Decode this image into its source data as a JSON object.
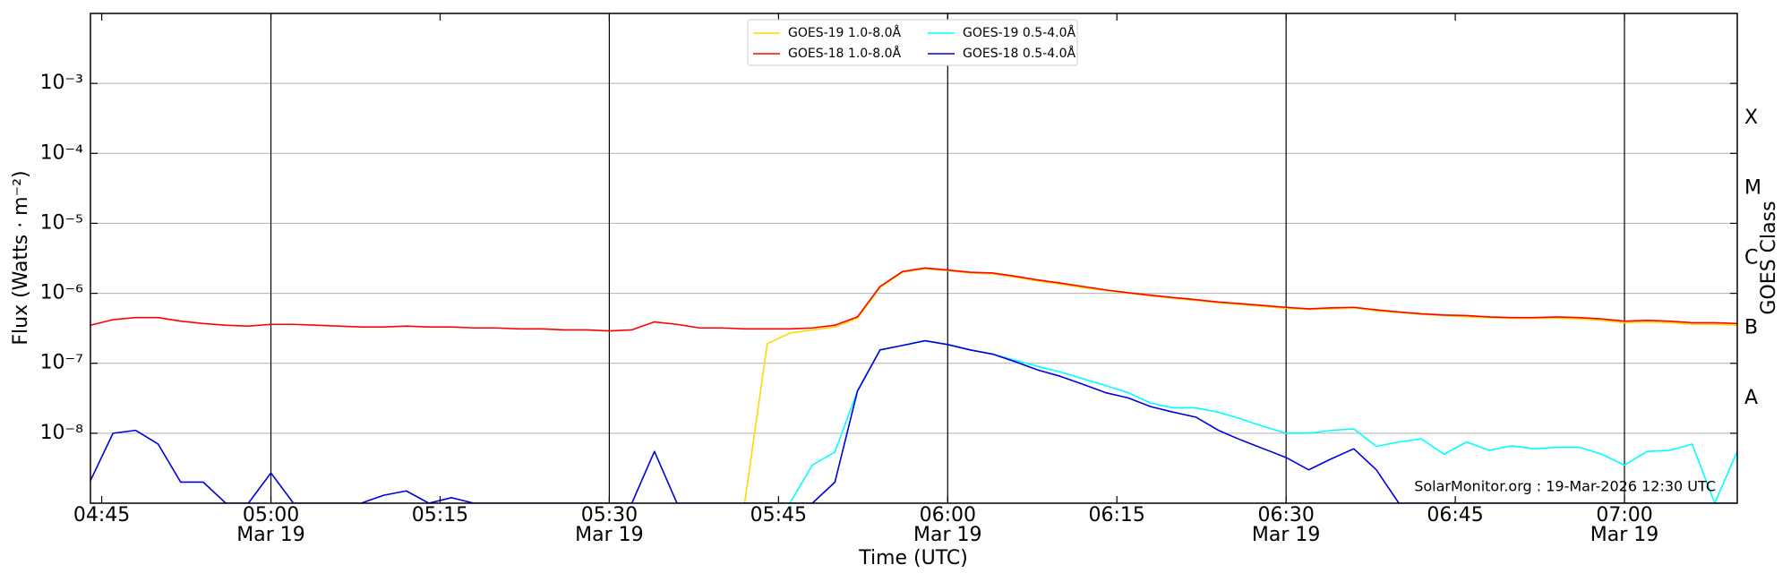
{
  "chart_data": {
    "type": "line",
    "xlabel": "Time (UTC)",
    "ylabel": "Flux (Watts · m⁻²)",
    "y2label": "GOES Class",
    "annotation": "SolarMonitor.org : 19-Mar-2026 12:30 UTC",
    "yscale": "log",
    "grid": true,
    "legend": "upper center",
    "xlim": [
      "04:44",
      "07:10"
    ],
    "xticks": [
      "04:45",
      {
        "value": "05:00",
        "label": [
          "05:00",
          "Mar 19"
        ]
      },
      "05:15",
      {
        "value": "05:30",
        "label": [
          "05:30",
          "Mar 19"
        ]
      },
      "05:45",
      {
        "value": "06:00",
        "label": [
          "06:00",
          "Mar 19"
        ]
      },
      "06:15",
      {
        "value": "06:30",
        "label": [
          "06:30",
          "Mar 19"
        ]
      },
      "06:45",
      {
        "value": "07:00",
        "label": [
          "07:00",
          "Mar 19"
        ]
      }
    ],
    "ylim": [
      1e-09,
      0.01
    ],
    "yticks": [
      {
        "value": 1e-08,
        "label": "10⁻⁸"
      },
      {
        "value": 1e-07,
        "label": "10⁻⁷"
      },
      {
        "value": 1e-06,
        "label": "10⁻⁶"
      },
      {
        "value": 1e-05,
        "label": "10⁻⁵"
      },
      {
        "value": 0.0001,
        "label": "10⁻⁴"
      },
      {
        "value": 0.001,
        "label": "10⁻³"
      }
    ],
    "y2ticks": [
      {
        "value": 3.16e-08,
        "label": "A"
      },
      {
        "value": 3.16e-07,
        "label": "B"
      },
      {
        "value": 3.16e-06,
        "label": "C"
      },
      {
        "value": 3.16e-05,
        "label": "M"
      },
      {
        "value": 0.000316,
        "label": "X"
      }
    ],
    "x": [
      "04:44",
      "04:46",
      "04:48",
      "04:50",
      "04:52",
      "04:54",
      "04:56",
      "04:58",
      "05:00",
      "05:02",
      "05:04",
      "05:06",
      "05:08",
      "05:10",
      "05:12",
      "05:14",
      "05:16",
      "05:18",
      "05:20",
      "05:22",
      "05:24",
      "05:26",
      "05:28",
      "05:30",
      "05:32",
      "05:34",
      "05:36",
      "05:38",
      "05:40",
      "05:42",
      "05:44",
      "05:46",
      "05:48",
      "05:50",
      "05:52",
      "05:54",
      "05:56",
      "05:58",
      "06:00",
      "06:02",
      "06:04",
      "06:06",
      "06:08",
      "06:10",
      "06:12",
      "06:14",
      "06:16",
      "06:18",
      "06:20",
      "06:22",
      "06:24",
      "06:26",
      "06:28",
      "06:30",
      "06:32",
      "06:34",
      "06:36",
      "06:38",
      "06:40",
      "06:42",
      "06:44",
      "06:46",
      "06:48",
      "06:50",
      "06:52",
      "06:54",
      "06:56",
      "06:58",
      "07:00",
      "07:02",
      "07:04",
      "07:06",
      "07:08",
      "07:10"
    ],
    "series": [
      {
        "name": "GOES-19 1.0-8.0Å",
        "color": "#ffd700",
        "values": [
          null,
          null,
          null,
          null,
          null,
          null,
          null,
          null,
          null,
          null,
          null,
          null,
          null,
          null,
          null,
          null,
          null,
          null,
          null,
          null,
          null,
          null,
          null,
          null,
          null,
          null,
          null,
          null,
          null,
          1e-09,
          1.9e-07,
          2.7e-07,
          3e-07,
          3.3e-07,
          4.4e-07,
          1.2e-06,
          2e-06,
          2.25e-06,
          2.1e-06,
          1.95e-06,
          1.9e-06,
          1.7e-06,
          1.5e-06,
          1.35e-06,
          1.2e-06,
          1.1e-06,
          1e-06,
          9.2e-07,
          8.5e-07,
          7.9e-07,
          7.3e-07,
          6.9e-07,
          6.5e-07,
          6.1e-07,
          5.9e-07,
          6e-07,
          6.2e-07,
          5.6e-07,
          5.3e-07,
          5e-07,
          4.8e-07,
          4.6e-07,
          4.5e-07,
          4.4e-07,
          4.4e-07,
          4.4e-07,
          4.3e-07,
          4.1e-07,
          3.8e-07,
          3.9e-07,
          3.8e-07,
          3.6e-07,
          3.6e-07,
          3.5e-07
        ]
      },
      {
        "name": "GOES-18 1.0-8.0Å",
        "color": "#ff0000",
        "values": [
          3.5e-07,
          4.2e-07,
          4.5e-07,
          4.5e-07,
          4e-07,
          3.7e-07,
          3.5e-07,
          3.4e-07,
          3.6e-07,
          3.6e-07,
          3.5e-07,
          3.4e-07,
          3.3e-07,
          3.3e-07,
          3.4e-07,
          3.3e-07,
          3.3e-07,
          3.2e-07,
          3.2e-07,
          3.1e-07,
          3.1e-07,
          3e-07,
          3e-07,
          2.9e-07,
          3e-07,
          3.9e-07,
          3.6e-07,
          3.2e-07,
          3.2e-07,
          3.1e-07,
          3.1e-07,
          3.1e-07,
          3.2e-07,
          3.5e-07,
          4.6e-07,
          1.25e-06,
          2.05e-06,
          2.3e-06,
          2.15e-06,
          2e-06,
          1.95e-06,
          1.75e-06,
          1.55e-06,
          1.4e-06,
          1.25e-06,
          1.12e-06,
          1.02e-06,
          9.4e-07,
          8.7e-07,
          8.1e-07,
          7.5e-07,
          7.1e-07,
          6.7e-07,
          6.3e-07,
          6e-07,
          6.2e-07,
          6.3e-07,
          5.8e-07,
          5.4e-07,
          5.1e-07,
          4.9e-07,
          4.8e-07,
          4.6e-07,
          4.5e-07,
          4.5e-07,
          4.6e-07,
          4.5e-07,
          4.3e-07,
          4e-07,
          4.1e-07,
          4e-07,
          3.8e-07,
          3.8e-07,
          3.7e-07
        ]
      },
      {
        "name": "GOES-19 0.5-4.0Å",
        "color": "#00ffff",
        "values": [
          null,
          null,
          null,
          null,
          null,
          null,
          null,
          null,
          null,
          null,
          null,
          null,
          null,
          null,
          null,
          null,
          null,
          null,
          null,
          null,
          null,
          null,
          null,
          null,
          null,
          null,
          null,
          null,
          null,
          null,
          null,
          1e-09,
          3.5e-09,
          5.4e-09,
          4e-08,
          1.55e-07,
          1.8e-07,
          2.1e-07,
          1.85e-07,
          1.55e-07,
          1.35e-07,
          1.1e-07,
          9e-08,
          7.5e-08,
          6e-08,
          4.8e-08,
          3.8e-08,
          2.7e-08,
          2.3e-08,
          2.3e-08,
          2e-08,
          1.6e-08,
          1.25e-08,
          1e-08,
          1e-08,
          1.1e-08,
          1.15e-08,
          6.5e-09,
          7.5e-09,
          8.3e-09,
          5e-09,
          7.5e-09,
          5.7e-09,
          6.6e-09,
          6e-09,
          6.3e-09,
          6.3e-09,
          5e-09,
          3.5e-09,
          5.5e-09,
          5.7e-09,
          7e-09,
          1e-09,
          5.5e-09
        ]
      },
      {
        "name": "GOES-18 0.5-4.0Å",
        "color": "#0000e0",
        "values": [
          2.1e-09,
          1e-08,
          1.1e-08,
          7e-09,
          2e-09,
          2e-09,
          1e-09,
          1e-09,
          2.7e-09,
          1e-09,
          1e-09,
          1e-09,
          1e-09,
          1.3e-09,
          1.5e-09,
          1e-09,
          1.2e-09,
          1e-09,
          1e-09,
          1e-09,
          1e-09,
          1e-09,
          1e-09,
          1e-09,
          1e-09,
          5.5e-09,
          1e-09,
          1e-09,
          1e-09,
          1e-09,
          1e-09,
          1e-09,
          1e-09,
          2e-09,
          4e-08,
          1.55e-07,
          1.8e-07,
          2.1e-07,
          1.85e-07,
          1.55e-07,
          1.35e-07,
          1.05e-07,
          8e-08,
          6.5e-08,
          5e-08,
          3.8e-08,
          3.2e-08,
          2.4e-08,
          2e-08,
          1.7e-08,
          1.1e-08,
          8e-09,
          6e-09,
          4.5e-09,
          3e-09,
          4.3e-09,
          6e-09,
          3e-09,
          1e-09,
          1e-09,
          1e-09,
          1e-09,
          1e-09,
          1e-09,
          1e-09,
          1e-09,
          1e-09,
          1e-09,
          1e-09,
          1e-09,
          1e-09,
          1e-09,
          1e-09,
          1e-09
        ]
      }
    ]
  }
}
